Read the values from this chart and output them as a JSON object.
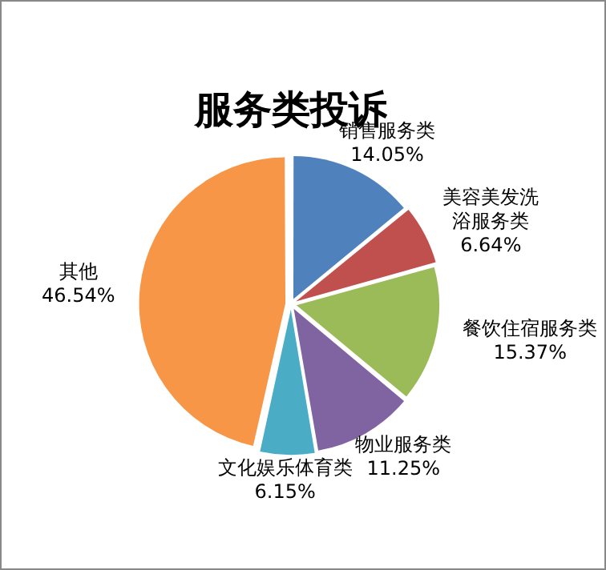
{
  "chart_data": {
    "type": "pie",
    "title": "服务类投诉",
    "categories": [
      "销售服务类",
      "美容美发洗浴服务类",
      "餐饮住宿服务类",
      "物业服务类",
      "文化娱乐体育类",
      "其他"
    ],
    "values": [
      14.05,
      6.64,
      15.37,
      11.25,
      6.15,
      46.54
    ],
    "value_labels": [
      "14.05%",
      "6.64%",
      "15.37%",
      "11.25%",
      "6.15%",
      "46.54%"
    ],
    "colors": [
      "#4f81bd",
      "#c0504d",
      "#9bbb59",
      "#8064a2",
      "#4bacc6",
      "#f79646"
    ],
    "legend": false
  }
}
